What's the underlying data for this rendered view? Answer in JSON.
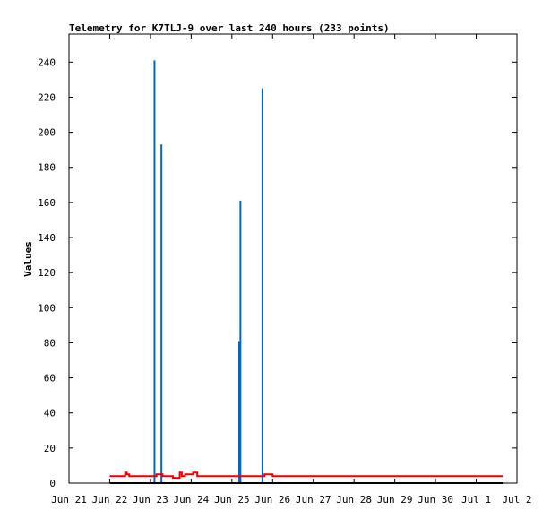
{
  "chart_data": {
    "type": "line",
    "title": "Telemetry for K7TLJ-9 over last 240 hours (233 points)",
    "ylabel": "Values",
    "xlabel": "",
    "x_ticks": [
      "Jun 21",
      "Jun 22",
      "Jun 23",
      "Jun 24",
      "Jun 25",
      "Jun 26",
      "Jun 27",
      "Jun 28",
      "Jun 29",
      "Jun 30",
      "Jul 1",
      "Jul 2"
    ],
    "y_ticks": [
      0,
      20,
      40,
      60,
      80,
      100,
      120,
      140,
      160,
      180,
      200,
      220,
      240
    ],
    "xlim_days": [
      0,
      11
    ],
    "ylim": [
      0,
      256
    ],
    "grid": false,
    "series": [
      {
        "color": "#0066cc",
        "style": "spikes",
        "points": [
          [
            2.1,
            241
          ],
          [
            2.27,
            193
          ],
          [
            4.18,
            81
          ],
          [
            4.21,
            161
          ],
          [
            4.75,
            225
          ]
        ]
      },
      {
        "color": "#ee0000",
        "style": "step-line",
        "points": [
          [
            1.0,
            4
          ],
          [
            1.38,
            4
          ],
          [
            1.38,
            6
          ],
          [
            1.42,
            6
          ],
          [
            1.42,
            5
          ],
          [
            1.48,
            5
          ],
          [
            1.48,
            4
          ],
          [
            2.15,
            4
          ],
          [
            2.15,
            5
          ],
          [
            2.3,
            5
          ],
          [
            2.3,
            4
          ],
          [
            2.55,
            4
          ],
          [
            2.55,
            3
          ],
          [
            2.72,
            3
          ],
          [
            2.72,
            6
          ],
          [
            2.77,
            6
          ],
          [
            2.77,
            4
          ],
          [
            2.85,
            4
          ],
          [
            2.85,
            5
          ],
          [
            3.05,
            5
          ],
          [
            3.05,
            6
          ],
          [
            3.15,
            6
          ],
          [
            3.15,
            4
          ],
          [
            4.8,
            4
          ],
          [
            4.8,
            5
          ],
          [
            5.0,
            5
          ],
          [
            5.0,
            4
          ],
          [
            10.65,
            4
          ]
        ]
      },
      {
        "color": "#000000",
        "style": "line",
        "points": [
          [
            1.0,
            0
          ],
          [
            10.65,
            0
          ]
        ]
      }
    ]
  }
}
